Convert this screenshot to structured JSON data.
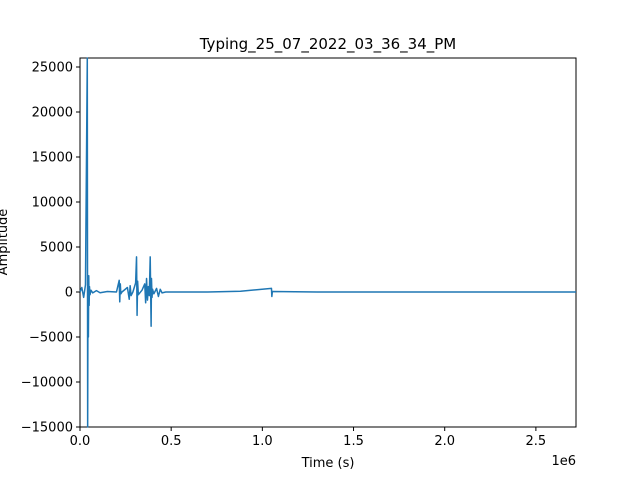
{
  "chart_data": {
    "type": "line",
    "title": "Typing_25_07_2022_03_36_34_PM",
    "xlabel": "Time (s)",
    "ylabel": "Amplitude",
    "x_scale_label": "1e6",
    "xlim": [
      0,
      2720000
    ],
    "ylim": [
      -15000,
      26000
    ],
    "grid": false,
    "x_ticks": [
      {
        "value": 0,
        "label": "0.0"
      },
      {
        "value": 500000,
        "label": "0.5"
      },
      {
        "value": 1000000,
        "label": "1.0"
      },
      {
        "value": 1500000,
        "label": "1.5"
      },
      {
        "value": 2000000,
        "label": "2.0"
      },
      {
        "value": 2500000,
        "label": "2.5"
      }
    ],
    "y_ticks": [
      {
        "value": -15000,
        "label": "−15000"
      },
      {
        "value": -10000,
        "label": "−10000"
      },
      {
        "value": -5000,
        "label": "−5000"
      },
      {
        "value": 0,
        "label": "0"
      },
      {
        "value": 5000,
        "label": "5000"
      },
      {
        "value": 10000,
        "label": "10000"
      },
      {
        "value": 15000,
        "label": "15000"
      },
      {
        "value": 20000,
        "label": "20000"
      },
      {
        "value": 25000,
        "label": "25000"
      }
    ],
    "series": [
      {
        "color": "#1f77b4",
        "x": [
          0,
          10000,
          20000,
          30000,
          40000,
          42000,
          44000,
          46000,
          48000,
          50000,
          52000,
          55000,
          60000,
          70000,
          90000,
          110000,
          150000,
          200000,
          215000,
          218000,
          221000,
          224000,
          230000,
          260000,
          270000,
          275000,
          280000,
          290000,
          305000,
          310000,
          313000,
          316000,
          320000,
          340000,
          355000,
          360000,
          365000,
          370000,
          375000,
          380000,
          385000,
          390000,
          392000,
          395000,
          398000,
          405000,
          420000,
          430000,
          440000,
          450000,
          470000,
          500000,
          700000,
          880000,
          1050000,
          1052000,
          1055000,
          1300000,
          1980000,
          2300000,
          2540000,
          2720000
        ],
        "y": [
          0,
          500,
          -600,
          800,
          26000,
          -15000,
          1200,
          -5000,
          1800,
          -1500,
          600,
          -300,
          200,
          -100,
          150,
          -80,
          50,
          0,
          1300,
          -1100,
          900,
          -200,
          0,
          500,
          -800,
          700,
          -400,
          0,
          1000,
          3900,
          -2600,
          1200,
          -300,
          200,
          900,
          -1200,
          1500,
          -900,
          600,
          -400,
          3900,
          -3800,
          1500,
          -600,
          300,
          -200,
          400,
          -500,
          300,
          -100,
          0,
          0,
          0,
          80,
          400,
          -500,
          60,
          0,
          0,
          0,
          0,
          0
        ]
      }
    ]
  }
}
